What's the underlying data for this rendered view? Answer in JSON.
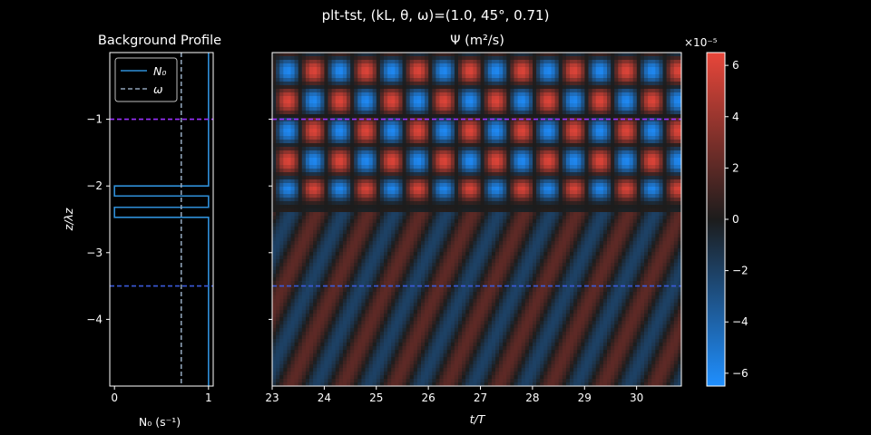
{
  "figure": {
    "suptitle": "plt-tst, (kL, θ, ω)=(1.0, 45°, 0.71)"
  },
  "chart_data": [
    {
      "type": "line",
      "panel": "background-profile",
      "title": "Background Profile",
      "xlabel": "N₀ (s⁻¹)",
      "ylabel": "z/λz",
      "xlim": [
        -0.05,
        1.05
      ],
      "ylim": [
        -5.0,
        0.0
      ],
      "xticks": [
        "0",
        "1"
      ],
      "xtick_values": [
        0,
        1
      ],
      "yticks": [
        "−1",
        "−2",
        "−3",
        "−4"
      ],
      "ytick_values": [
        -1,
        -2,
        -3,
        -4
      ],
      "legend": {
        "placement": "top-left",
        "entries": [
          "N₀",
          "ω"
        ]
      },
      "series": [
        {
          "name": "N₀",
          "color": "#2f8fd8",
          "style": "solid",
          "x": [
            1,
            1,
            0,
            0,
            1,
            1,
            0,
            0,
            1,
            1
          ],
          "y": [
            0,
            -2.0,
            -2.0,
            -2.15,
            -2.15,
            -2.32,
            -2.32,
            -2.47,
            -2.47,
            -5.0
          ]
        },
        {
          "name": "ω",
          "color": "#8fa3b8",
          "style": "dashed",
          "x": [
            0.71,
            0.71
          ],
          "y": [
            0,
            -5.0
          ]
        }
      ],
      "hlines": [
        {
          "y": -1.0,
          "color": "#9b30ff",
          "style": "dashed"
        },
        {
          "y": -3.5,
          "color": "#3b5bdb",
          "style": "dashed"
        }
      ]
    },
    {
      "type": "heatmap",
      "panel": "stream-function",
      "title": "Ψ (m²/s)",
      "xlabel": "t/T",
      "xlim": [
        23.0,
        30.86
      ],
      "ylim": [
        -5.0,
        0.0
      ],
      "xticks": [
        "23",
        "24",
        "25",
        "26",
        "27",
        "28",
        "29",
        "30"
      ],
      "xtick_values": [
        23,
        24,
        25,
        26,
        27,
        28,
        29,
        30
      ],
      "ytick_values": [
        -1,
        -2,
        -3,
        -4
      ],
      "colorbar": {
        "range": [
          -6.5e-05,
          6.5e-05
        ],
        "multiplier": "×10⁻⁵",
        "ticks": [
          "6",
          "4",
          "2",
          "0",
          "−2",
          "−4",
          "−6"
        ],
        "tick_values": [
          6,
          4,
          2,
          0,
          -2,
          -4,
          -6
        ],
        "cmap": {
          "neg": "#1f8fff",
          "mid": "#1c1c1c",
          "pos": "#e8463a"
        }
      },
      "hlines": [
        {
          "y": -1.0,
          "color": "#9b30ff",
          "style": "dashed"
        },
        {
          "y": -3.5,
          "color": "#3b5bdb",
          "style": "dashed"
        }
      ]
    }
  ]
}
